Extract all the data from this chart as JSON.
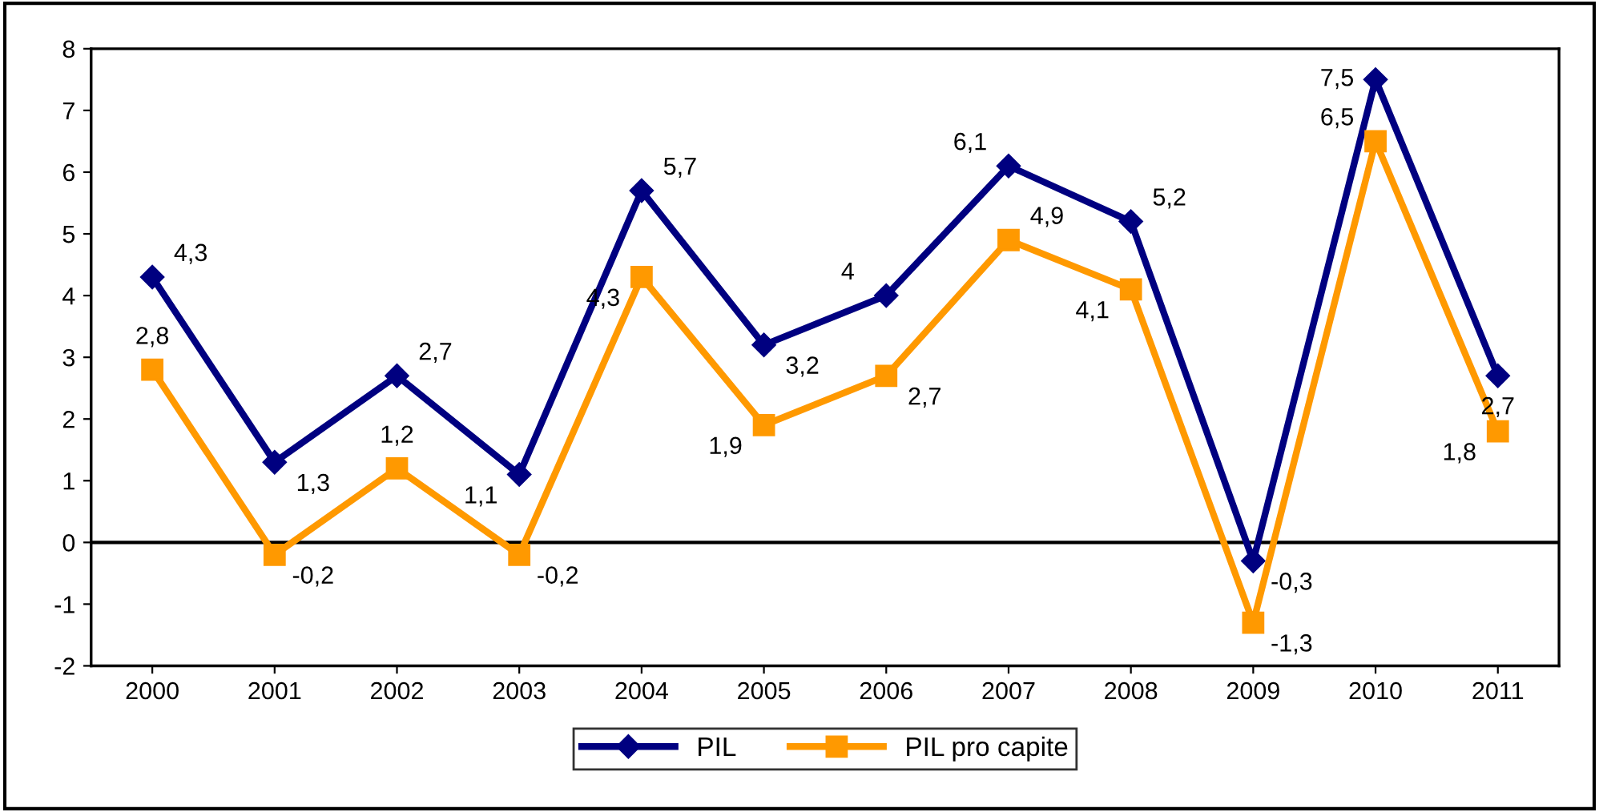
{
  "chart_data": {
    "type": "line",
    "categories": [
      "2000",
      "2001",
      "2002",
      "2003",
      "2004",
      "2005",
      "2006",
      "2007",
      "2008",
      "2009",
      "2010",
      "2011"
    ],
    "series": [
      {
        "name": "PIL",
        "color": "#000080",
        "marker": "diamond",
        "values": [
          4.3,
          1.3,
          2.7,
          1.1,
          5.7,
          3.2,
          4,
          6.1,
          5.2,
          -0.3,
          7.5,
          2.7
        ],
        "value_labels": [
          "4,3",
          "1,3",
          "2,7",
          "1,1",
          "5,7",
          "3,2",
          "4",
          "6,1",
          "5,2",
          "-0,3",
          "7,5",
          "2,7"
        ]
      },
      {
        "name": "PIL pro capite",
        "color": "#ff9900",
        "marker": "square",
        "values": [
          2.8,
          -0.2,
          1.2,
          -0.2,
          4.3,
          1.9,
          2.7,
          4.9,
          4.1,
          -1.3,
          6.5,
          1.8
        ],
        "value_labels": [
          "2,8",
          "-0,2",
          "1,2",
          "-0,2",
          "4,3",
          "1,9",
          "2,7",
          "4,9",
          "4,1",
          "-1,3",
          "6,5",
          "1,8"
        ]
      }
    ],
    "ylim": [
      -2,
      8
    ],
    "yticks": [
      -2,
      -1,
      0,
      1,
      2,
      3,
      4,
      5,
      6,
      7,
      8
    ],
    "grid": false,
    "legend": "bottom",
    "line_style": "solid",
    "ref_lines": [
      {
        "axis": "y",
        "value": 0,
        "color": "#000000"
      }
    ]
  }
}
